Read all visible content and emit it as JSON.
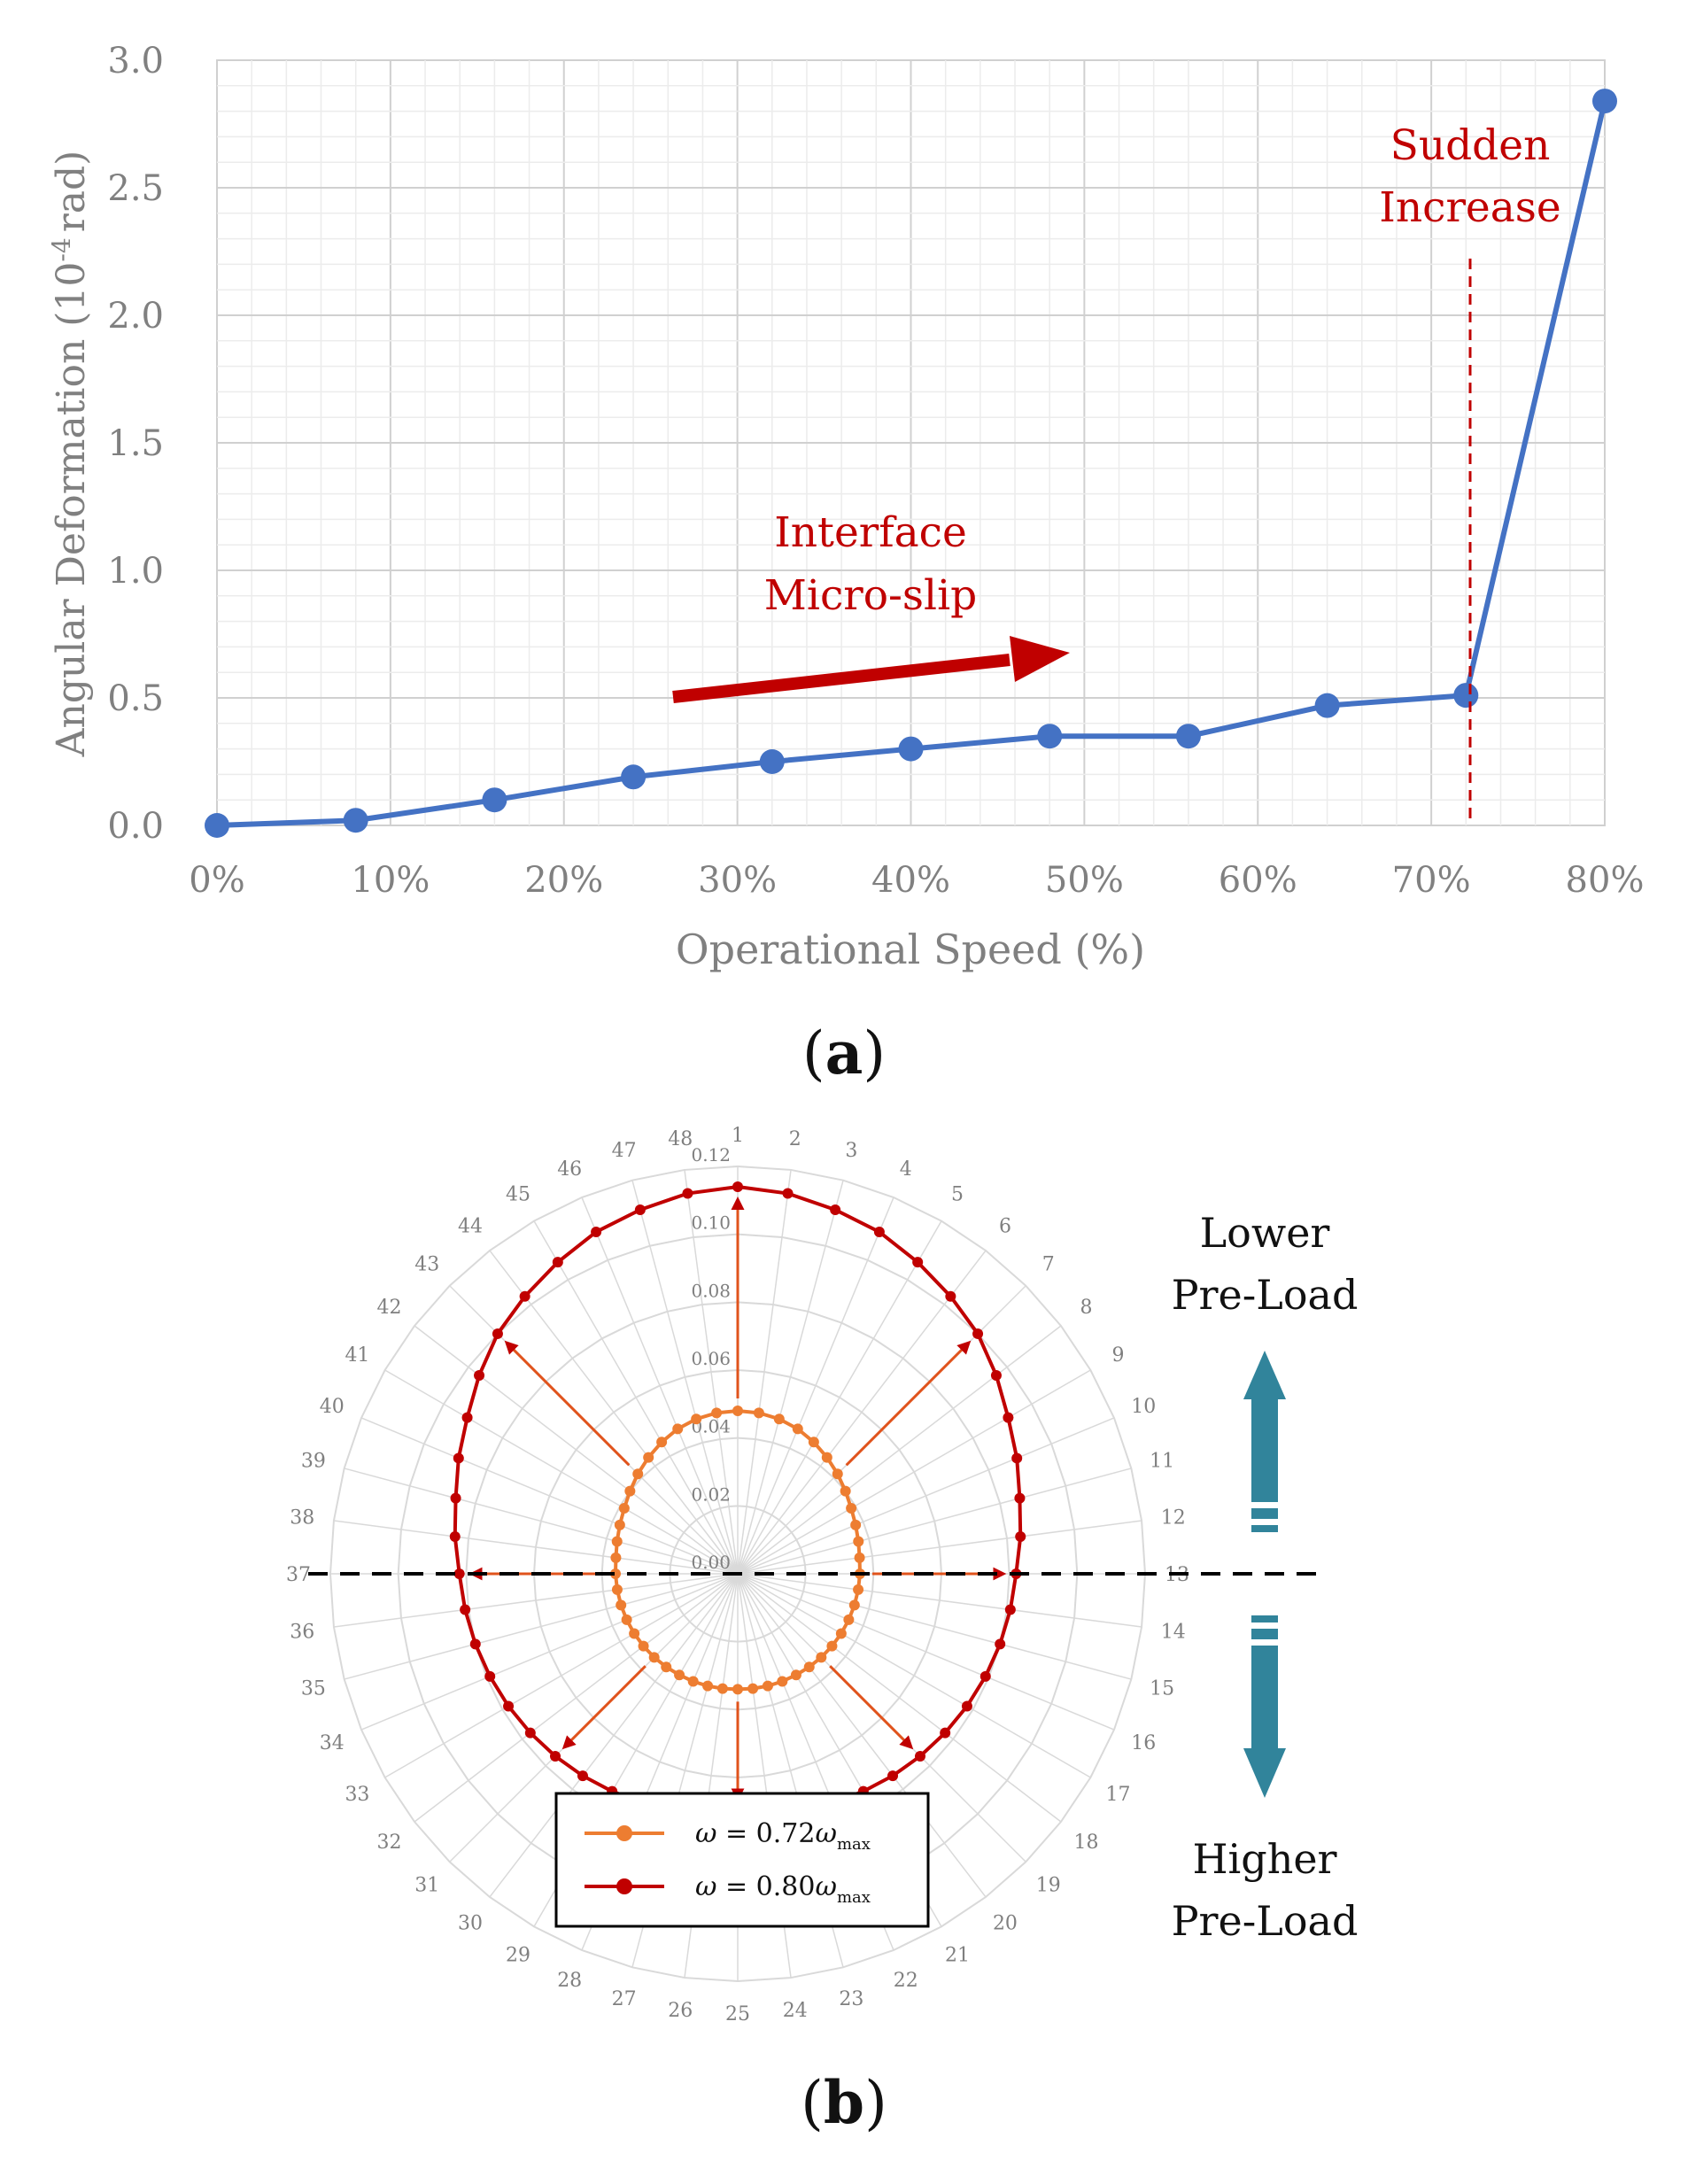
{
  "panel_a": {
    "label": "a"
  },
  "panel_b": {
    "label": "b"
  },
  "chart_data": [
    {
      "type": "line",
      "xlabel": "Operational Speed (%)",
      "ylabel_prefix": "Angular Deformation (10",
      "ylabel_sup": "-4",
      "ylabel_suffix": "rad)",
      "x": [
        0,
        8,
        16,
        24,
        32,
        40,
        48,
        56,
        64,
        72,
        80
      ],
      "y": [
        0.0,
        0.02,
        0.1,
        0.19,
        0.25,
        0.3,
        0.35,
        0.35,
        0.47,
        0.51,
        2.84
      ],
      "xlim": [
        0,
        80
      ],
      "ylim": [
        0,
        3.0
      ],
      "x_ticks": [
        "0%",
        "10%",
        "20%",
        "30%",
        "40%",
        "50%",
        "60%",
        "70%",
        "80%"
      ],
      "y_ticks": [
        "0.0",
        "0.5",
        "1.0",
        "1.5",
        "2.0",
        "2.5",
        "3.0"
      ],
      "grid": true,
      "colors": {
        "line": "#4472c4",
        "annotation": "#c00000",
        "axis_text": "#808080"
      },
      "annotations": [
        {
          "lines": [
            "Interface",
            "Micro-slip"
          ]
        },
        {
          "lines": [
            "Sudden",
            "Increase"
          ]
        }
      ]
    },
    {
      "type": "polar-line",
      "angle_labels": [
        "1",
        "2",
        "3",
        "4",
        "5",
        "6",
        "7",
        "8",
        "9",
        "10",
        "11",
        "12",
        "13",
        "14",
        "15",
        "16",
        "17",
        "18",
        "19",
        "20",
        "21",
        "22",
        "23",
        "24",
        "25",
        "26",
        "27",
        "28",
        "29",
        "30",
        "31",
        "32",
        "33",
        "34",
        "35",
        "36",
        "37",
        "38",
        "39",
        "40",
        "41",
        "42",
        "43",
        "44",
        "45",
        "46",
        "47",
        "48"
      ],
      "radial_ticks": [
        "0.00",
        "0.02",
        "0.04",
        "0.06",
        "0.08",
        "0.10",
        "0.12"
      ],
      "rlim": [
        0,
        0.12
      ],
      "series": [
        {
          "name_symbol": "ω",
          "name_eq": " = 0.72",
          "name_sub": "max",
          "color": "#ed7d31",
          "values": [
            0.048,
            0.0478,
            0.0472,
            0.0462,
            0.0448,
            0.0432,
            0.0416,
            0.04,
            0.0386,
            0.0376,
            0.0368,
            0.0362,
            0.036,
            0.0358,
            0.0356,
            0.0354,
            0.0352,
            0.035,
            0.0348,
            0.0346,
            0.0344,
            0.0343,
            0.0342,
            0.0341,
            0.034,
            0.0341,
            0.0342,
            0.0343,
            0.0344,
            0.0346,
            0.0348,
            0.035,
            0.0352,
            0.0354,
            0.0356,
            0.0358,
            0.036,
            0.0362,
            0.0368,
            0.0376,
            0.0386,
            0.04,
            0.0416,
            0.0432,
            0.0448,
            0.0462,
            0.0472,
            0.0478
          ]
        },
        {
          "name_symbol": "ω",
          "name_eq": " = 0.80",
          "name_sub": "max",
          "color": "#c00000",
          "values": [
            0.114,
            0.113,
            0.111,
            0.109,
            0.106,
            0.103,
            0.1,
            0.096,
            0.092,
            0.089,
            0.086,
            0.084,
            0.082,
            0.081,
            0.08,
            0.079,
            0.078,
            0.077,
            0.076,
            0.075,
            0.074,
            0.073,
            0.072,
            0.071,
            0.07,
            0.071,
            0.072,
            0.073,
            0.074,
            0.075,
            0.076,
            0.077,
            0.078,
            0.079,
            0.08,
            0.081,
            0.082,
            0.084,
            0.086,
            0.089,
            0.092,
            0.096,
            0.1,
            0.103,
            0.106,
            0.109,
            0.111,
            0.113
          ]
        }
      ],
      "side_labels": {
        "top": [
          "Lower",
          "Pre-Load"
        ],
        "bottom": [
          "Higher",
          "Pre-Load"
        ]
      },
      "colors": {
        "arrow": "#31849b",
        "grid": "#d9d9d9",
        "label": "#7f7f7f"
      }
    }
  ]
}
